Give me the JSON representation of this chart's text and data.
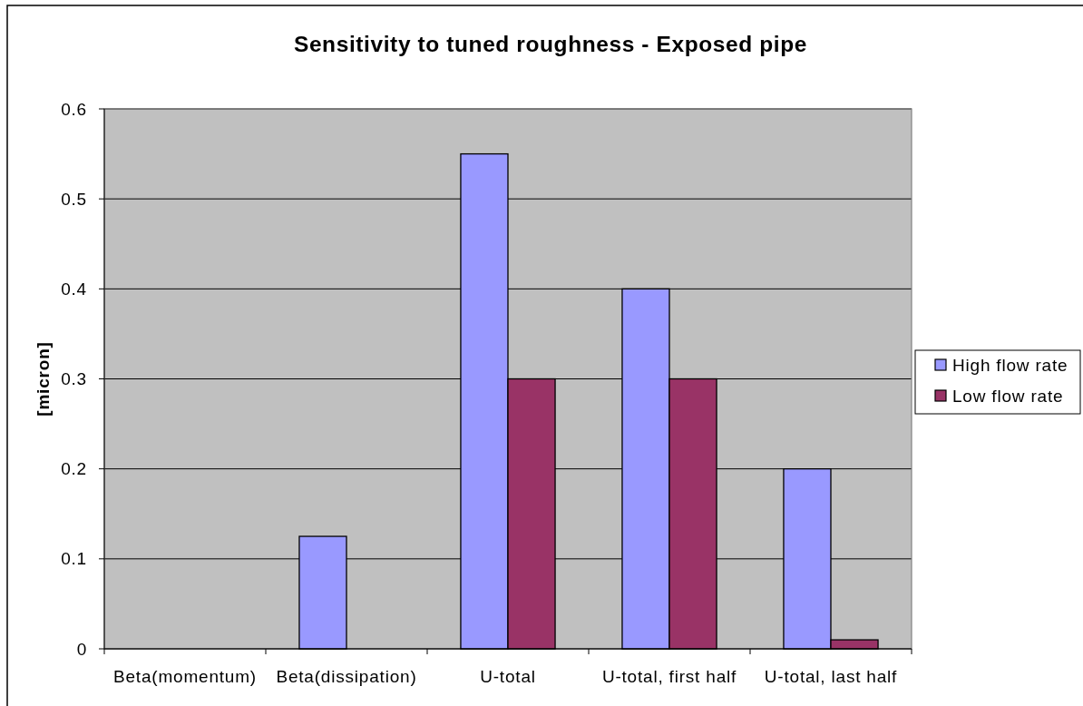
{
  "chart_data": {
    "type": "bar",
    "title": "Sensitivity to tuned roughness - Exposed pipe",
    "ylabel": "[micron]",
    "categories": [
      "Beta(momentum)",
      "Beta(dissipation)",
      "U-total",
      "U-total, first half",
      "U-total, last half"
    ],
    "series": [
      {
        "name": "High flow rate",
        "color": "#9999ff",
        "values": [
          null,
          0.125,
          0.55,
          0.4,
          0.2
        ]
      },
      {
        "name": "Low flow rate",
        "color": "#993366",
        "values": [
          null,
          null,
          0.3,
          0.3,
          0.01
        ]
      }
    ],
    "ylim": [
      0,
      0.6
    ],
    "yticks": [
      0,
      0.1,
      0.2,
      0.3,
      0.4,
      0.5,
      0.6
    ],
    "grid": "y",
    "legend": "right"
  }
}
